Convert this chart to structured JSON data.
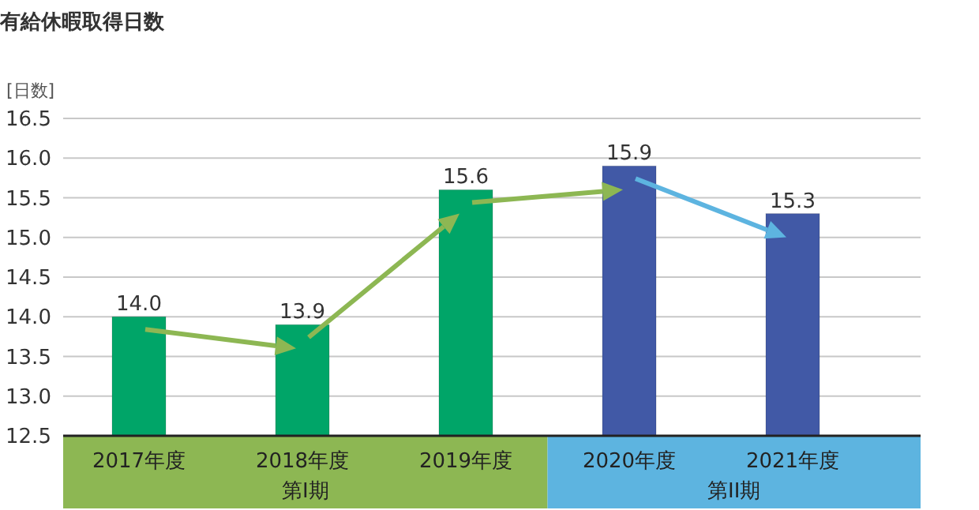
{
  "chart_data": {
    "type": "bar",
    "title": "有給休暇取得日数",
    "ylabel": "[日数]",
    "categories": [
      "2017年度",
      "2018年度",
      "2019年度",
      "2020年度",
      "2021年度"
    ],
    "values": [
      14.0,
      13.9,
      15.6,
      15.9,
      15.3
    ],
    "value_labels": [
      "14.0",
      "13.9",
      "15.6",
      "15.9",
      "15.3"
    ],
    "colors": [
      "#00a568",
      "#00a568",
      "#00a568",
      "#4159a6",
      "#4159a6"
    ],
    "ylim": [
      12.5,
      16.5
    ],
    "yticks": [
      {
        "value": 12.5,
        "label": "12.5"
      },
      {
        "value": 13,
        "label": "13.0"
      },
      {
        "value": 13.5,
        "label": "13.5"
      },
      {
        "value": 14,
        "label": "14.0"
      },
      {
        "value": 14.5,
        "label": "14.5"
      },
      {
        "value": 15,
        "label": "15.0"
      },
      {
        "value": 15.5,
        "label": "15.5"
      },
      {
        "value": 16,
        "label": "16.0"
      },
      {
        "value": 16.5,
        "label": "16.5"
      }
    ],
    "grid": "y",
    "annotations": [
      "第I期",
      "第II期"
    ]
  }
}
